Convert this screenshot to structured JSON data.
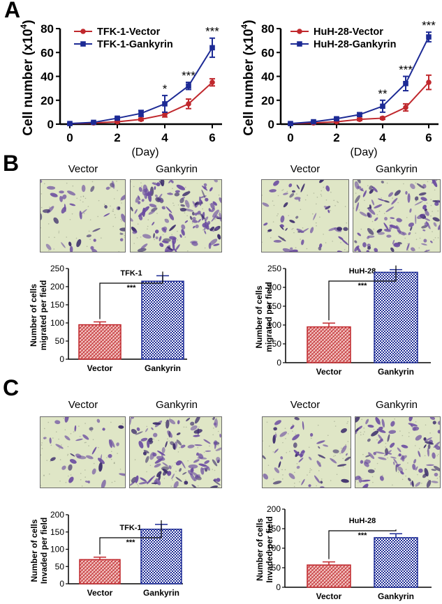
{
  "panels": {
    "A": "A",
    "B": "B",
    "C": "C"
  },
  "colors": {
    "vector": "#c0282d",
    "gankyrin": "#1c2a95",
    "micro_bg": "#dfe6c6",
    "stain": "#6a4ba0"
  },
  "image_labels": {
    "vector": "Vector",
    "gankyrin": "Gankyrin"
  },
  "chart_data": [
    {
      "id": "A-left",
      "type": "line",
      "ylabel": "Cell number (x10",
      "ylabel_sup": "4",
      "ylabel_close": ")",
      "xlabel": "(Day)",
      "ylim": [
        0,
        80
      ],
      "yticks": [
        0,
        20,
        40,
        60,
        80
      ],
      "xlim": [
        0,
        6
      ],
      "xticks": [
        0,
        2,
        4,
        6
      ],
      "legend_position": "top-left",
      "x": [
        0,
        1,
        2,
        3,
        4,
        5,
        6
      ],
      "series": [
        {
          "name": "TFK-1-Vector",
          "marker": "circle",
          "values": [
            0.5,
            1,
            2,
            4,
            8,
            17,
            35
          ],
          "err": [
            0.3,
            0.5,
            0.8,
            1,
            2,
            4,
            3
          ]
        },
        {
          "name": "TFK-1-Gankyrin",
          "marker": "square",
          "values": [
            0.5,
            1.5,
            5,
            9,
            17,
            32,
            64
          ],
          "err": [
            0.3,
            0.5,
            1,
            2.5,
            7,
            3,
            8
          ]
        }
      ],
      "annotations": [
        {
          "x": 4,
          "text": "*"
        },
        {
          "x": 5,
          "text": "***"
        },
        {
          "x": 6,
          "text": "***"
        }
      ]
    },
    {
      "id": "A-right",
      "type": "line",
      "ylabel": "Cell number (x10",
      "ylabel_sup": "4",
      "ylabel_close": ")",
      "xlabel": "(Day)",
      "ylim": [
        0,
        80
      ],
      "yticks": [
        0,
        20,
        40,
        60,
        80
      ],
      "xlim": [
        0,
        6
      ],
      "xticks": [
        0,
        2,
        4,
        6
      ],
      "legend_position": "top-left",
      "x": [
        0,
        1,
        2,
        3,
        4,
        5,
        6
      ],
      "series": [
        {
          "name": "HuH-28-Vector",
          "marker": "circle",
          "values": [
            0.5,
            1,
            2,
            4,
            5,
            14,
            35
          ],
          "err": [
            0.3,
            0.5,
            0.8,
            1,
            1,
            3,
            6
          ]
        },
        {
          "name": "HuH-28-Gankyrin",
          "marker": "square",
          "values": [
            0.5,
            2,
            4.5,
            8,
            15,
            34,
            73
          ],
          "err": [
            0.3,
            0.5,
            1,
            1.5,
            5,
            6,
            4
          ]
        }
      ],
      "annotations": [
        {
          "x": 4,
          "text": "**"
        },
        {
          "x": 5,
          "text": "***"
        },
        {
          "x": 6,
          "text": "***"
        }
      ]
    },
    {
      "id": "B-left",
      "type": "bar",
      "title": "TFK-1",
      "ylabel": [
        "Number of cells",
        "migrated per field"
      ],
      "ylim": [
        0,
        250
      ],
      "yticks": [
        0,
        50,
        100,
        150,
        200,
        250
      ],
      "categories": [
        "Vector",
        "Gankyrin"
      ],
      "values": [
        95,
        215
      ],
      "err": [
        8,
        15
      ],
      "significance": "***"
    },
    {
      "id": "B-right",
      "type": "bar",
      "title": "HuH-28",
      "ylabel": [
        "Number of cells",
        "migrated per field"
      ],
      "ylim": [
        0,
        250
      ],
      "yticks": [
        0,
        50,
        100,
        150,
        200,
        250
      ],
      "categories": [
        "Vector",
        "Gankyrin"
      ],
      "values": [
        95,
        240
      ],
      "err": [
        10,
        7
      ],
      "significance": "***"
    },
    {
      "id": "C-left",
      "type": "bar",
      "title": "TFK-1",
      "ylabel": [
        "Number of cells",
        "Invaded per field"
      ],
      "ylim": [
        0,
        200
      ],
      "yticks": [
        0,
        50,
        100,
        150,
        200
      ],
      "categories": [
        "Vector",
        "Gankyrin"
      ],
      "values": [
        70,
        158
      ],
      "err": [
        7,
        14
      ],
      "significance": "***"
    },
    {
      "id": "C-right",
      "type": "bar",
      "title": "HuH-28",
      "ylabel": [
        "Number of cells",
        "Invaded per field"
      ],
      "ylim": [
        0,
        200
      ],
      "yticks": [
        0,
        50,
        100,
        150,
        200
      ],
      "categories": [
        "Vector",
        "Gankyrin"
      ],
      "values": [
        57,
        127
      ],
      "err": [
        8,
        10
      ],
      "significance": "***"
    }
  ]
}
